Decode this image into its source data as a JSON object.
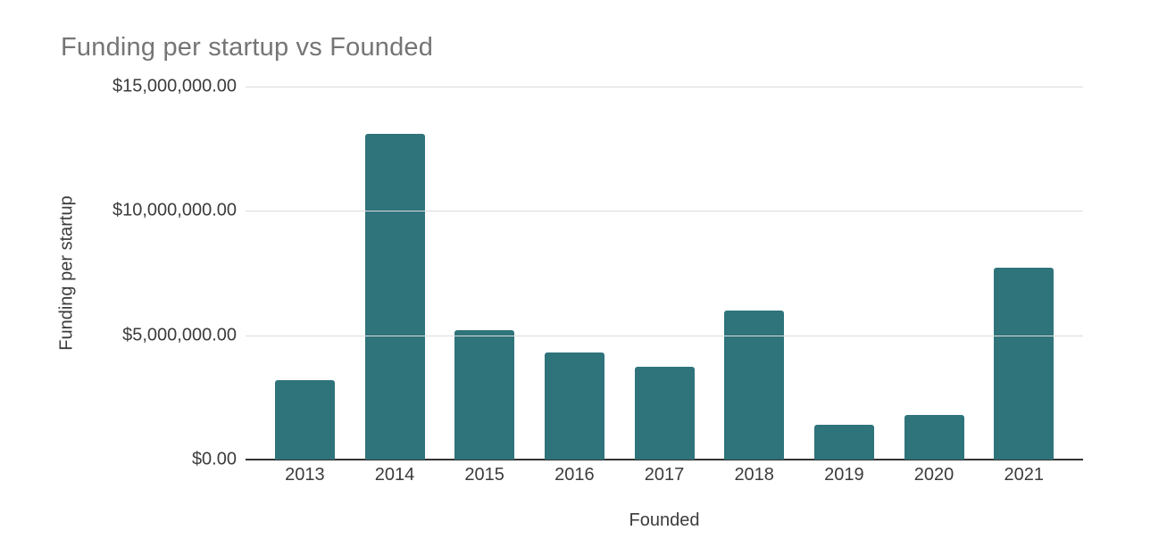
{
  "chart_data": {
    "type": "bar",
    "title": "Funding per startup vs Founded",
    "xlabel": "Founded",
    "ylabel": "Funding per startup",
    "categories": [
      "2013",
      "2014",
      "2015",
      "2016",
      "2017",
      "2018",
      "2019",
      "2020",
      "2021"
    ],
    "values": [
      3200000,
      13100000,
      5200000,
      4300000,
      3750000,
      6000000,
      1400000,
      1800000,
      7700000
    ],
    "ylim": [
      0,
      15000000
    ],
    "ytick_values": [
      15000000,
      10000000,
      5000000,
      0
    ],
    "ytick_labels": [
      "$15,000,000.00",
      "$10,000,000.00",
      "$5,000,000.00",
      "$0.00"
    ],
    "grid": true,
    "legend_position": "none",
    "bar_color": "#2f737b"
  },
  "colors": {
    "background": "#ffffff",
    "title": "#757575",
    "axis_text": "#3c3c3c",
    "gridline": "#dcdcdc",
    "baseline": "#333333",
    "bar": "#2f737b"
  }
}
